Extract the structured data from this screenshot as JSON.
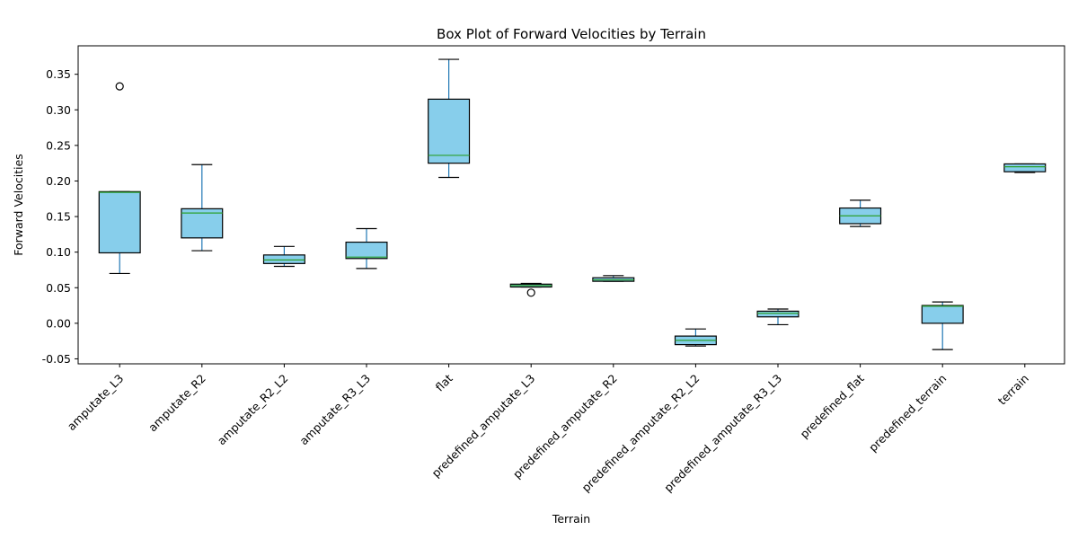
{
  "chart_data": {
    "type": "box",
    "title": "Box Plot of Forward Velocities by Terrain",
    "xlabel": "Terrain",
    "ylabel": "Forward Velocities",
    "ylim": [
      -0.057,
      0.39
    ],
    "yticks": [
      "-0.05",
      "0.00",
      "0.05",
      "0.10",
      "0.15",
      "0.20",
      "0.25",
      "0.30",
      "0.35"
    ],
    "grid": false,
    "colors": {
      "box_fill": "#87CEEB",
      "box_edge": "#000000",
      "median": "#2ca02c",
      "whisker": "#1f77b4",
      "cap": "#000000"
    },
    "categories": [
      "amputate_L3",
      "amputate_R2",
      "amputate_R2_L2",
      "amputate_R3_L3",
      "flat",
      "predefined_amputate_L3",
      "predefined_amputate_R2",
      "predefined_amputate_R2_L2",
      "predefined_amputate_R3_L3",
      "predefined_flat",
      "predefined_terrain",
      "terrain"
    ],
    "boxes": [
      {
        "whislo": 0.07,
        "q1": 0.099,
        "med": 0.184,
        "q3": 0.185,
        "whishi": 0.185,
        "fliers": [
          0.333
        ]
      },
      {
        "whislo": 0.102,
        "q1": 0.12,
        "med": 0.155,
        "q3": 0.161,
        "whishi": 0.223,
        "fliers": []
      },
      {
        "whislo": 0.08,
        "q1": 0.084,
        "med": 0.089,
        "q3": 0.096,
        "whishi": 0.108,
        "fliers": []
      },
      {
        "whislo": 0.077,
        "q1": 0.091,
        "med": 0.093,
        "q3": 0.114,
        "whishi": 0.133,
        "fliers": []
      },
      {
        "whislo": 0.205,
        "q1": 0.225,
        "med": 0.236,
        "q3": 0.315,
        "whishi": 0.371,
        "fliers": []
      },
      {
        "whislo": 0.051,
        "q1": 0.051,
        "med": 0.053,
        "q3": 0.055,
        "whishi": 0.056,
        "fliers": [
          0.043
        ]
      },
      {
        "whislo": 0.059,
        "q1": 0.059,
        "med": 0.061,
        "q3": 0.064,
        "whishi": 0.067,
        "fliers": []
      },
      {
        "whislo": -0.032,
        "q1": -0.03,
        "med": -0.024,
        "q3": -0.018,
        "whishi": -0.008,
        "fliers": []
      },
      {
        "whislo": -0.002,
        "q1": 0.009,
        "med": 0.014,
        "q3": 0.017,
        "whishi": 0.02,
        "fliers": []
      },
      {
        "whislo": 0.136,
        "q1": 0.14,
        "med": 0.151,
        "q3": 0.162,
        "whishi": 0.173,
        "fliers": []
      },
      {
        "whislo": -0.037,
        "q1": 0.0,
        "med": 0.024,
        "q3": 0.025,
        "whishi": 0.03,
        "fliers": []
      },
      {
        "whislo": 0.212,
        "q1": 0.213,
        "med": 0.22,
        "q3": 0.224,
        "whishi": 0.224,
        "fliers": []
      }
    ]
  }
}
